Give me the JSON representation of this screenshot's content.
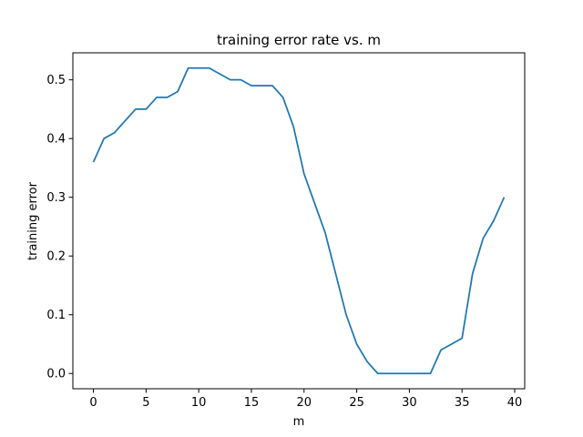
{
  "chart_data": {
    "type": "line",
    "title": "training error rate vs. m",
    "xlabel": "m",
    "ylabel": "training error",
    "xlim": [
      -1.95,
      40.95
    ],
    "ylim": [
      -0.026,
      0.546
    ],
    "xticks": [
      0,
      5,
      10,
      15,
      20,
      25,
      30,
      35,
      40
    ],
    "yticks": [
      0.0,
      0.1,
      0.2,
      0.3,
      0.4,
      0.5
    ],
    "xtick_labels": [
      "0",
      "5",
      "10",
      "15",
      "20",
      "25",
      "30",
      "35",
      "40"
    ],
    "ytick_labels": [
      "0.0",
      "0.1",
      "0.2",
      "0.3",
      "0.4",
      "0.5"
    ],
    "grid": false,
    "series": [
      {
        "color": "#1f77b4",
        "x": [
          0,
          1,
          2,
          3,
          4,
          5,
          6,
          7,
          8,
          9,
          10,
          11,
          12,
          13,
          14,
          15,
          16,
          17,
          18,
          19,
          20,
          21,
          22,
          23,
          24,
          25,
          26,
          27,
          28,
          29,
          30,
          31,
          32,
          33,
          34,
          35,
          36,
          37,
          38,
          39
        ],
        "y": [
          0.36,
          0.4,
          0.41,
          0.43,
          0.45,
          0.45,
          0.47,
          0.47,
          0.48,
          0.52,
          0.52,
          0.52,
          0.51,
          0.5,
          0.5,
          0.49,
          0.49,
          0.49,
          0.47,
          0.42,
          0.34,
          0.29,
          0.24,
          0.17,
          0.1,
          0.05,
          0.02,
          0.0,
          0.0,
          0.0,
          0.0,
          0.0,
          0.0,
          0.04,
          0.05,
          0.06,
          0.17,
          0.23,
          0.26,
          0.3
        ]
      }
    ]
  }
}
